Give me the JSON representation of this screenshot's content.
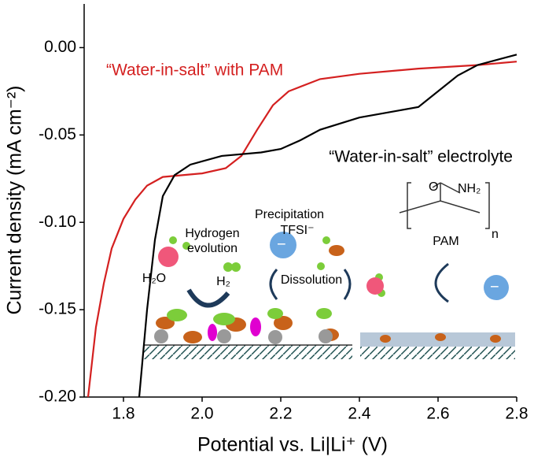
{
  "chart_data": {
    "type": "line",
    "xlabel": "Potential vs. Li|Li⁺ (V)",
    "ylabel": "Current density (mA cm⁻²)",
    "xlim": [
      1.7,
      2.8
    ],
    "ylim": [
      -0.2,
      0.025
    ],
    "xticks": [
      {
        "value": 1.8,
        "label": "1.8"
      },
      {
        "value": 2.0,
        "label": "2.0"
      },
      {
        "value": 2.2,
        "label": "2.2"
      },
      {
        "value": 2.4,
        "label": "2.4"
      },
      {
        "value": 2.6,
        "label": "2.6"
      },
      {
        "value": 2.8,
        "label": "2.8"
      }
    ],
    "yticks": [
      {
        "value": 0,
        "label": "0.00"
      },
      {
        "value": -0.05,
        "label": "-0.05"
      },
      {
        "value": -0.1,
        "label": "-0.10"
      },
      {
        "value": -0.15,
        "label": "-0.15"
      },
      {
        "value": -0.2,
        "label": "-0.20"
      }
    ],
    "grid": false,
    "series": [
      {
        "name": "“Water-in-salt” with PAM",
        "color": "#d42020",
        "x": [
          1.71,
          1.73,
          1.75,
          1.77,
          1.8,
          1.83,
          1.86,
          1.9,
          2.0,
          2.06,
          2.1,
          2.14,
          2.18,
          2.22,
          2.3,
          2.4,
          2.55,
          2.7,
          2.8
        ],
        "values": [
          -0.2,
          -0.16,
          -0.135,
          -0.115,
          -0.098,
          -0.087,
          -0.079,
          -0.074,
          -0.072,
          -0.069,
          -0.062,
          -0.047,
          -0.033,
          -0.025,
          -0.018,
          -0.015,
          -0.012,
          -0.01,
          -0.008
        ]
      },
      {
        "name": "“Water-in-salt” electrolyte",
        "color": "#000000",
        "x": [
          1.84,
          1.86,
          1.88,
          1.9,
          1.93,
          1.97,
          2.05,
          2.15,
          2.2,
          2.25,
          2.3,
          2.4,
          2.5,
          2.55,
          2.6,
          2.65,
          2.7,
          2.8
        ],
        "values": [
          -0.2,
          -0.15,
          -0.11,
          -0.085,
          -0.073,
          -0.067,
          -0.062,
          -0.06,
          -0.058,
          -0.053,
          -0.047,
          -0.04,
          -0.036,
          -0.034,
          -0.025,
          -0.016,
          -0.01,
          -0.004
        ]
      }
    ],
    "annotations": [
      "Hydrogen",
      "evolution",
      "H₂O",
      "H₂",
      "Precipitation",
      "TFSI⁻",
      "Dissolution",
      "PAM",
      "O",
      "NH₂",
      "n"
    ]
  }
}
